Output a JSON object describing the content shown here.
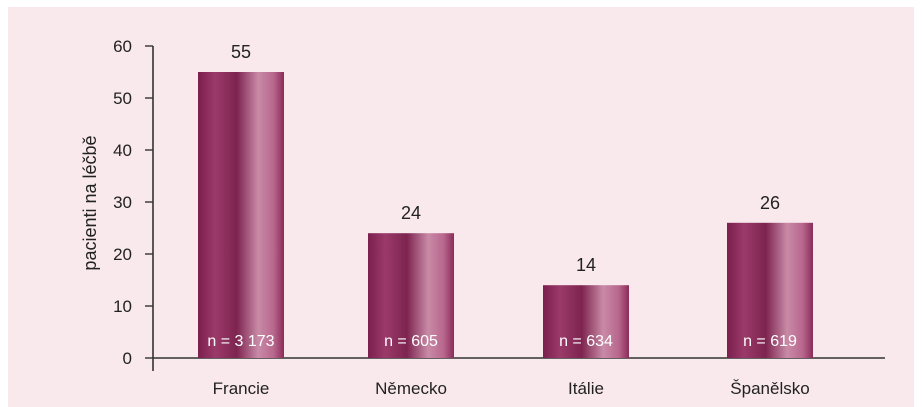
{
  "chart_data": {
    "type": "bar",
    "title": "",
    "xlabel": "",
    "ylabel": "pacienti na léčbě",
    "ylim": [
      0,
      60
    ],
    "yticks": [
      0,
      10,
      20,
      30,
      40,
      50,
      60
    ],
    "categories": [
      "Francie",
      "Německo",
      "Itálie",
      "Španělsko"
    ],
    "values": [
      55,
      24,
      14,
      26
    ],
    "value_labels": [
      "55",
      "24",
      "14",
      "26"
    ],
    "sample_sizes": [
      "n = 3 173",
      "n = 605",
      "n = 634",
      "n = 619"
    ],
    "grid": false,
    "legend": "none",
    "colors": {
      "background": "#f9e9ec",
      "bar_dark": "#7b1f4d",
      "bar_mid": "#9b3a6a",
      "bar_light": "#c98aa7",
      "axis": "#333333",
      "text": "#222222"
    }
  }
}
